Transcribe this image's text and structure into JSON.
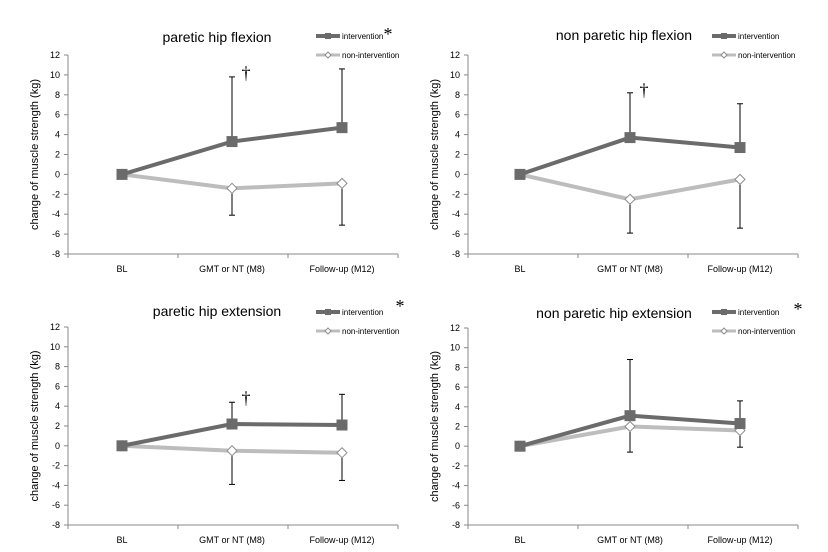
{
  "colors": {
    "intervention": "#6b6b6b",
    "non_intervention": "#bdbdbd",
    "error_bar": "#000000"
  },
  "chart_data": [
    {
      "type": "line",
      "title": "paretic hip flexion",
      "ylabel": "change of muscle strength (kg)",
      "categories": [
        "BL",
        "GMT or NT (M8)",
        "Follow-up (M12)"
      ],
      "ylim": [
        -8,
        12
      ],
      "yticks": [
        "-8",
        "-6",
        "-4",
        "-2",
        "0",
        "2",
        "4",
        "6",
        "8",
        "10",
        "12"
      ],
      "legend_position": "top-right",
      "legend_star": "*",
      "series": [
        {
          "name": "intervention",
          "marker": "square",
          "values": [
            0,
            3.3,
            4.7
          ],
          "err_high": [
            null,
            9.8,
            10.6
          ],
          "err_low": [
            null,
            null,
            null
          ]
        },
        {
          "name": "non-intervention",
          "marker": "diamond",
          "values": [
            0,
            -1.4,
            -0.9
          ],
          "err_high": [
            null,
            null,
            null
          ],
          "err_low": [
            null,
            -4.1,
            -5.1
          ]
        }
      ],
      "annotations": [
        {
          "text": "†",
          "category_index": 1,
          "y": 9.6
        }
      ]
    },
    {
      "type": "line",
      "title": "non paretic hip flexion",
      "ylabel": "change of muscle strength (kg)",
      "categories": [
        "BL",
        "GMT or NT (M8)",
        "Follow-up (M12)"
      ],
      "ylim": [
        -8,
        12
      ],
      "yticks": [
        "-8",
        "-6",
        "-4",
        "-2",
        "0",
        "2",
        "4",
        "6",
        "8",
        "10",
        "12"
      ],
      "legend_position": "top-right",
      "legend_star": "",
      "series": [
        {
          "name": "intervention",
          "marker": "square",
          "values": [
            0,
            3.7,
            2.7
          ],
          "err_high": [
            null,
            8.2,
            7.1
          ],
          "err_low": [
            null,
            null,
            null
          ]
        },
        {
          "name": "non-intervention",
          "marker": "diamond",
          "values": [
            0,
            -2.5,
            -0.5
          ],
          "err_high": [
            null,
            null,
            null
          ],
          "err_low": [
            null,
            -5.9,
            -5.4
          ]
        }
      ],
      "annotations": [
        {
          "text": "†",
          "category_index": 1,
          "y": 7.9
        }
      ]
    },
    {
      "type": "line",
      "title": "paretic hip extension",
      "ylabel": "change of muscle strength (kg)",
      "categories": [
        "BL",
        "GMT or NT (M8)",
        "Follow-up (M12)"
      ],
      "ylim": [
        -8,
        12
      ],
      "yticks": [
        "-8",
        "-6",
        "-4",
        "-2",
        "0",
        "2",
        "4",
        "6",
        "8",
        "10",
        "12"
      ],
      "legend_position": "top-right",
      "legend_star": "*",
      "series": [
        {
          "name": "intervention",
          "marker": "square",
          "values": [
            0,
            2.2,
            2.1
          ],
          "err_high": [
            null,
            4.4,
            5.2
          ],
          "err_low": [
            null,
            null,
            null
          ]
        },
        {
          "name": "non-intervention",
          "marker": "diamond",
          "values": [
            0,
            -0.5,
            -0.7
          ],
          "err_high": [
            null,
            null,
            null
          ],
          "err_low": [
            null,
            -3.9,
            -3.5
          ]
        }
      ],
      "annotations": [
        {
          "text": "†",
          "category_index": 1,
          "y": 4.2
        }
      ]
    },
    {
      "type": "line",
      "title": "non paretic hip extension",
      "ylabel": "change of muscle strength (kg)",
      "categories": [
        "BL",
        "GMT or NT (M8)",
        "Follow-up (M12)"
      ],
      "ylim": [
        -8,
        12
      ],
      "yticks": [
        "-8",
        "-6",
        "-4",
        "-2",
        "0",
        "2",
        "4",
        "6",
        "8",
        "10",
        "12"
      ],
      "legend_position": "top-right",
      "legend_star": "*",
      "series": [
        {
          "name": "intervention",
          "marker": "square",
          "values": [
            0,
            3.1,
            2.3
          ],
          "err_high": [
            null,
            8.8,
            4.6
          ],
          "err_low": [
            null,
            null,
            null
          ]
        },
        {
          "name": "non-intervention",
          "marker": "diamond",
          "values": [
            0,
            2.0,
            1.6
          ],
          "err_high": [
            null,
            null,
            null
          ],
          "err_low": [
            null,
            -0.6,
            -0.1
          ]
        }
      ],
      "annotations": []
    }
  ]
}
